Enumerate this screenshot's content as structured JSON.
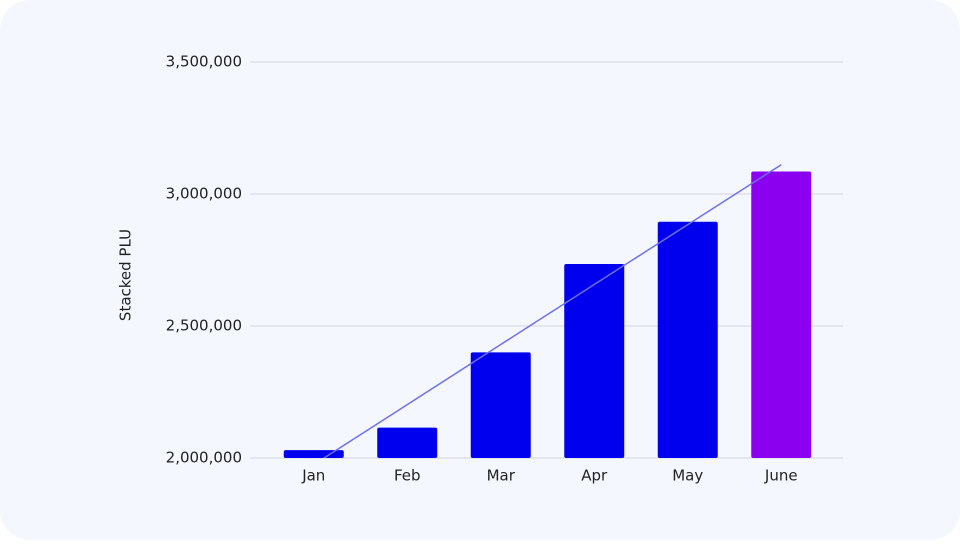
{
  "chart_data": {
    "type": "bar",
    "y_label": "Stacked PLU",
    "categories": [
      "Jan",
      "Feb",
      "Mar",
      "Apr",
      "May",
      "June"
    ],
    "values": [
      2030000,
      2115000,
      2400000,
      2735000,
      2895000,
      3085000
    ],
    "colors": [
      "#0000ee",
      "#0000ee",
      "#0000ee",
      "#0000ee",
      "#0000ee",
      "#8c00f0"
    ],
    "trend": {
      "color": "#6f6ff2",
      "values": [
        1975000,
        2202000,
        2430000,
        2657000,
        2884000,
        3111000
      ]
    },
    "ylim": [
      2000000,
      3500000
    ],
    "yticks": [
      {
        "value": 2000000,
        "label": "2,000,000"
      },
      {
        "value": 2500000,
        "label": "2,500,000"
      },
      {
        "value": 3000000,
        "label": "3,000,000"
      },
      {
        "value": 3500000,
        "label": "3,500,000"
      }
    ],
    "grid": true
  }
}
